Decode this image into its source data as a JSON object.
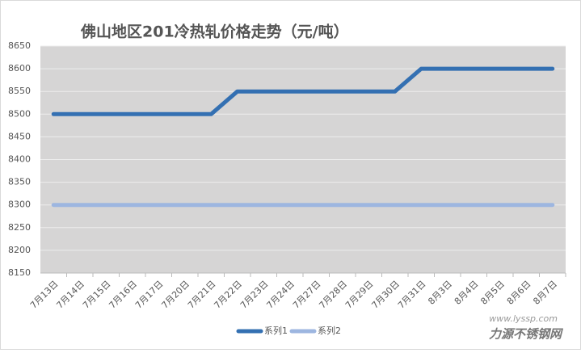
{
  "chart_data": {
    "type": "line",
    "title": "佛山地区201冷热轧价格走势（元/吨）",
    "categories": [
      "7月13日",
      "7月14日",
      "7月15日",
      "7月16日",
      "7月17日",
      "7月20日",
      "7月21日",
      "7月22日",
      "7月23日",
      "7月24日",
      "7月27日",
      "7月28日",
      "7月29日",
      "7月30日",
      "7月31日",
      "8月3日",
      "8月4日",
      "8月5日",
      "8月6日",
      "8月7日"
    ],
    "series": [
      {
        "name": "系列1",
        "color": "#3470b2",
        "values": [
          8500,
          8500,
          8500,
          8500,
          8500,
          8500,
          8500,
          8550,
          8550,
          8550,
          8550,
          8550,
          8550,
          8550,
          8600,
          8600,
          8600,
          8600,
          8600,
          8600
        ]
      },
      {
        "name": "系列2",
        "color": "#9db6e0",
        "values": [
          8300,
          8300,
          8300,
          8300,
          8300,
          8300,
          8300,
          8300,
          8300,
          8300,
          8300,
          8300,
          8300,
          8300,
          8300,
          8300,
          8300,
          8300,
          8300,
          8300
        ]
      }
    ],
    "ylim": [
      8150,
      8650
    ],
    "yticks": [
      8150,
      8200,
      8250,
      8300,
      8350,
      8400,
      8450,
      8500,
      8550,
      8600,
      8650
    ],
    "grid": true,
    "legend": "bottom"
  },
  "watermark": {
    "url": "www.lyssp.com",
    "name": "力源不锈钢网"
  }
}
